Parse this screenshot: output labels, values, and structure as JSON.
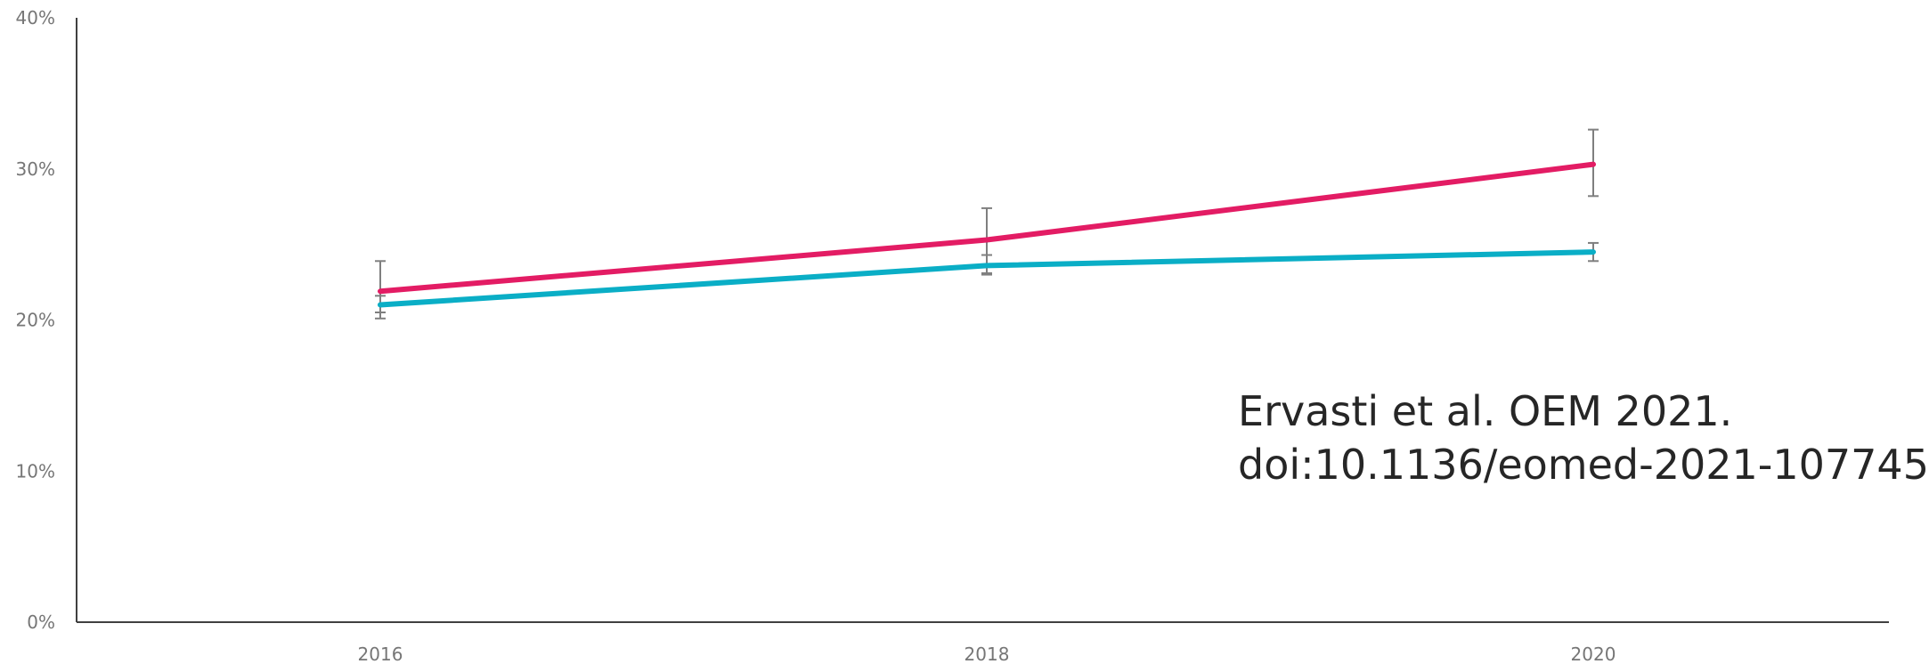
{
  "chart_data": {
    "type": "line",
    "title": "",
    "xlabel": "",
    "ylabel": "",
    "categories": [
      "2016",
      "2018",
      "2020"
    ],
    "ylim": [
      0,
      40
    ],
    "y_ticks": [
      "0%",
      "10%",
      "20%",
      "30%",
      "40%"
    ],
    "grid": false,
    "series": [
      {
        "color": "#e31c64",
        "values": [
          21.9,
          25.3,
          30.3
        ],
        "error_low": [
          20.5,
          23.1,
          28.2
        ],
        "error_high": [
          23.9,
          27.4,
          32.6
        ]
      },
      {
        "color": "#0aaec6",
        "values": [
          21.0,
          23.6,
          24.5
        ],
        "error_low": [
          20.1,
          23.0,
          23.9
        ],
        "error_high": [
          21.6,
          24.3,
          25.1
        ]
      }
    ],
    "annotation": {
      "line1": "Ervasti et al. OEM 2021.",
      "line2": "doi:10.1136/eomed-2021-107745"
    }
  }
}
